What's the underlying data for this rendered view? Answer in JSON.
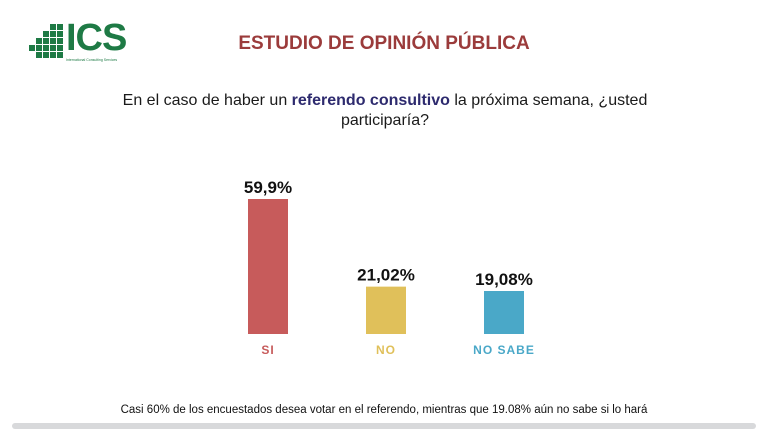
{
  "logo": {
    "text": "ICS",
    "subtitle": "International Consulting Services",
    "color": "#1e7a45"
  },
  "header": {
    "title": "ESTUDIO DE OPINIÓN PÚBLICA"
  },
  "question": {
    "before": "En el caso de haber un ",
    "highlight": "referendo consultivo",
    "after": " la próxima semana, ¿usted participaría?"
  },
  "chart_data": {
    "type": "bar",
    "title": "",
    "xlabel": "",
    "ylabel": "",
    "ylim": [
      0,
      100
    ],
    "grid": false,
    "categories": [
      "SI",
      "NO",
      "NO SABE"
    ],
    "values": [
      59.9,
      21.02,
      19.08
    ],
    "value_labels": [
      "59,9%",
      "21,02%",
      "19,08%"
    ],
    "colors": [
      "#c75b5b",
      "#e0c05a",
      "#4aa8c8"
    ]
  },
  "footnote": "Casi 60% de los encuestados desea votar en el referendo, mientras que 19.08% aún no sabe si lo hará"
}
